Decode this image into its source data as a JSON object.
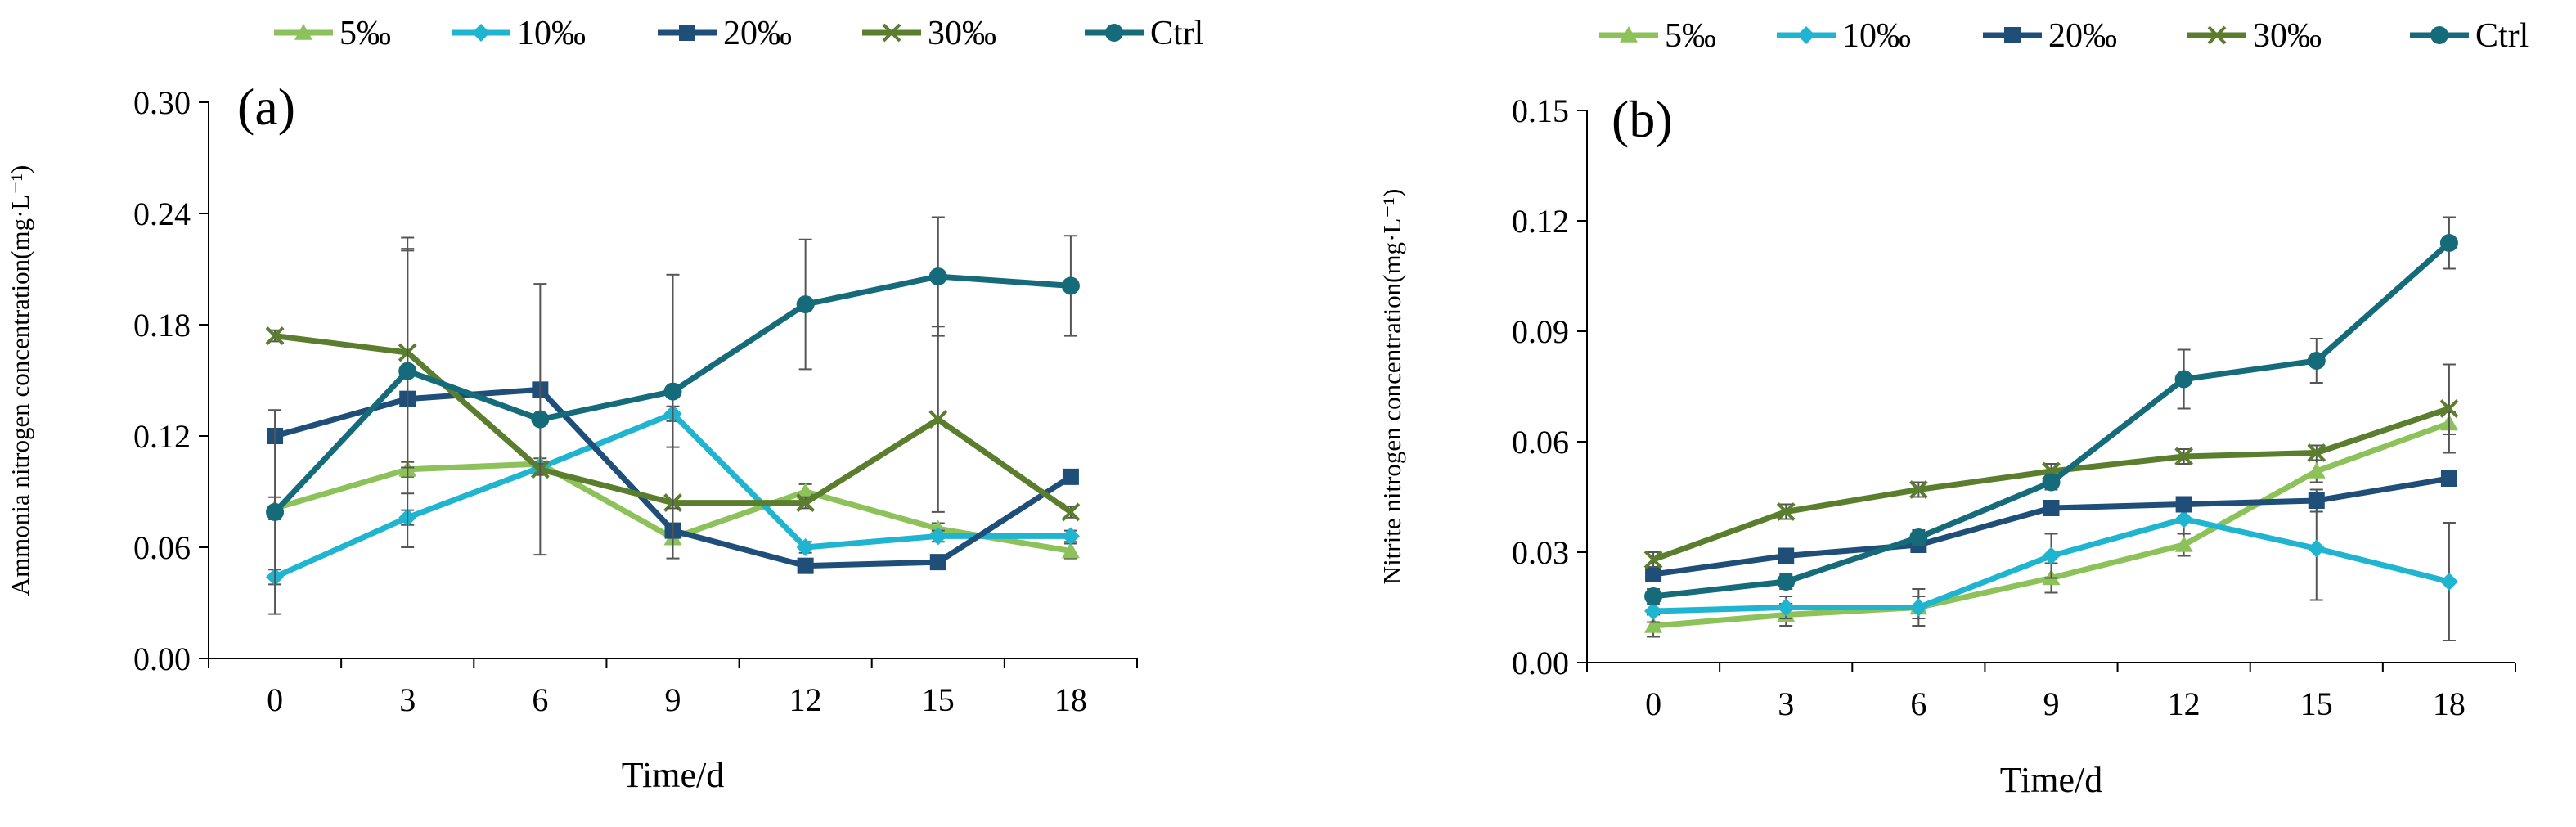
{
  "chart_data": [
    {
      "type": "line",
      "panel_label": "(a)",
      "title": "",
      "xlabel": "Time/d",
      "ylabel": "Ammonia nitrogen concentration(mg·L⁻¹)",
      "categories": [
        "0",
        "3",
        "6",
        "9",
        "12",
        "15",
        "18"
      ],
      "x": [
        0,
        3,
        6,
        9,
        12,
        15,
        18
      ],
      "ylim": [
        0,
        0.3
      ],
      "yticks": [
        0,
        0.06,
        0.12,
        0.18,
        0.24,
        0.3
      ],
      "ytick_labels": [
        "0.00",
        "0.06",
        "0.12",
        "0.18",
        "0.24",
        "0.30"
      ],
      "legend_position": "top",
      "series": [
        {
          "name": "5‰",
          "color": "#8DC15A",
          "marker": "triangle",
          "values": [
            0.081,
            0.102,
            0.105,
            0.065,
            0.09,
            0.07,
            0.058
          ],
          "errors": [
            0.006,
            0.004,
            0.003,
            0.003,
            0.004,
            0.003,
            0.004
          ]
        },
        {
          "name": "10‰",
          "color": "#1FB4CF",
          "marker": "diamond",
          "values": [
            0.044,
            0.076,
            0.103,
            0.132,
            0.06,
            0.066,
            0.066
          ],
          "errors": [
            0.004,
            0.004,
            0.003,
            0.004,
            0.003,
            0.003,
            0.003
          ]
        },
        {
          "name": "20‰",
          "color": "#1F4E79",
          "marker": "square",
          "values": [
            0.12,
            0.14,
            0.145,
            0.069,
            0.05,
            0.052,
            0.098
          ],
          "errors": [
            0.003,
            0.08,
            0.003,
            0.003,
            0.003,
            0.003,
            0.003
          ]
        },
        {
          "name": "30‰",
          "color": "#5B7D2E",
          "marker": "cross",
          "values": [
            0.174,
            0.165,
            0.102,
            0.084,
            0.084,
            0.129,
            0.079
          ],
          "errors": [
            0.003,
            0.062,
            0.003,
            0.03,
            0.003,
            0.05,
            0.003
          ]
        },
        {
          "name": "Ctrl",
          "color": "#156B7A",
          "marker": "circle",
          "values": [
            0.079,
            0.155,
            0.129,
            0.144,
            0.191,
            0.206,
            0.201
          ],
          "errors": [
            0.055,
            0.066,
            0.073,
            0.063,
            0.035,
            0.032,
            0.027
          ]
        }
      ]
    },
    {
      "type": "line",
      "panel_label": "(b)",
      "title": "",
      "xlabel": "Time/d",
      "ylabel": "Nitrite nitrogen concentration(mg·L⁻¹)",
      "categories": [
        "0",
        "3",
        "6",
        "9",
        "12",
        "15",
        "18"
      ],
      "x": [
        0,
        3,
        6,
        9,
        12,
        15,
        18
      ],
      "ylim": [
        0,
        0.15
      ],
      "yticks": [
        0,
        0.03,
        0.06,
        0.09,
        0.12,
        0.15
      ],
      "ytick_labels": [
        "0.00",
        "0.03",
        "0.06",
        "0.09",
        "0.12",
        "0.15"
      ],
      "legend_position": "top",
      "series": [
        {
          "name": "5‰",
          "color": "#8DC15A",
          "marker": "triangle",
          "values": [
            0.01,
            0.013,
            0.015,
            0.023,
            0.032,
            0.052,
            0.065
          ],
          "errors": [
            0.003,
            0.003,
            0.003,
            0.004,
            0.003,
            0.003,
            0.003
          ]
        },
        {
          "name": "10‰",
          "color": "#1FB4CF",
          "marker": "diamond",
          "values": [
            0.014,
            0.015,
            0.015,
            0.029,
            0.039,
            0.031,
            0.022
          ],
          "errors": [
            0.003,
            0.003,
            0.005,
            0.006,
            0.004,
            0.014,
            0.016
          ]
        },
        {
          "name": "20‰",
          "color": "#1F4E79",
          "marker": "square",
          "values": [
            0.024,
            0.029,
            0.032,
            0.042,
            0.043,
            0.044,
            0.05
          ],
          "errors": [
            0.002,
            0.002,
            0.002,
            0.002,
            0.002,
            0.003,
            0.002
          ]
        },
        {
          "name": "30‰",
          "color": "#5B7D2E",
          "marker": "cross",
          "values": [
            0.028,
            0.041,
            0.047,
            0.052,
            0.056,
            0.057,
            0.069
          ],
          "errors": [
            0.002,
            0.002,
            0.002,
            0.002,
            0.002,
            0.002,
            0.012
          ]
        },
        {
          "name": "Ctrl",
          "color": "#156B7A",
          "marker": "circle",
          "values": [
            0.018,
            0.022,
            0.034,
            0.049,
            0.077,
            0.082,
            0.114
          ],
          "errors": [
            0.002,
            0.002,
            0.002,
            0.002,
            0.008,
            0.006,
            0.007
          ]
        }
      ]
    }
  ]
}
